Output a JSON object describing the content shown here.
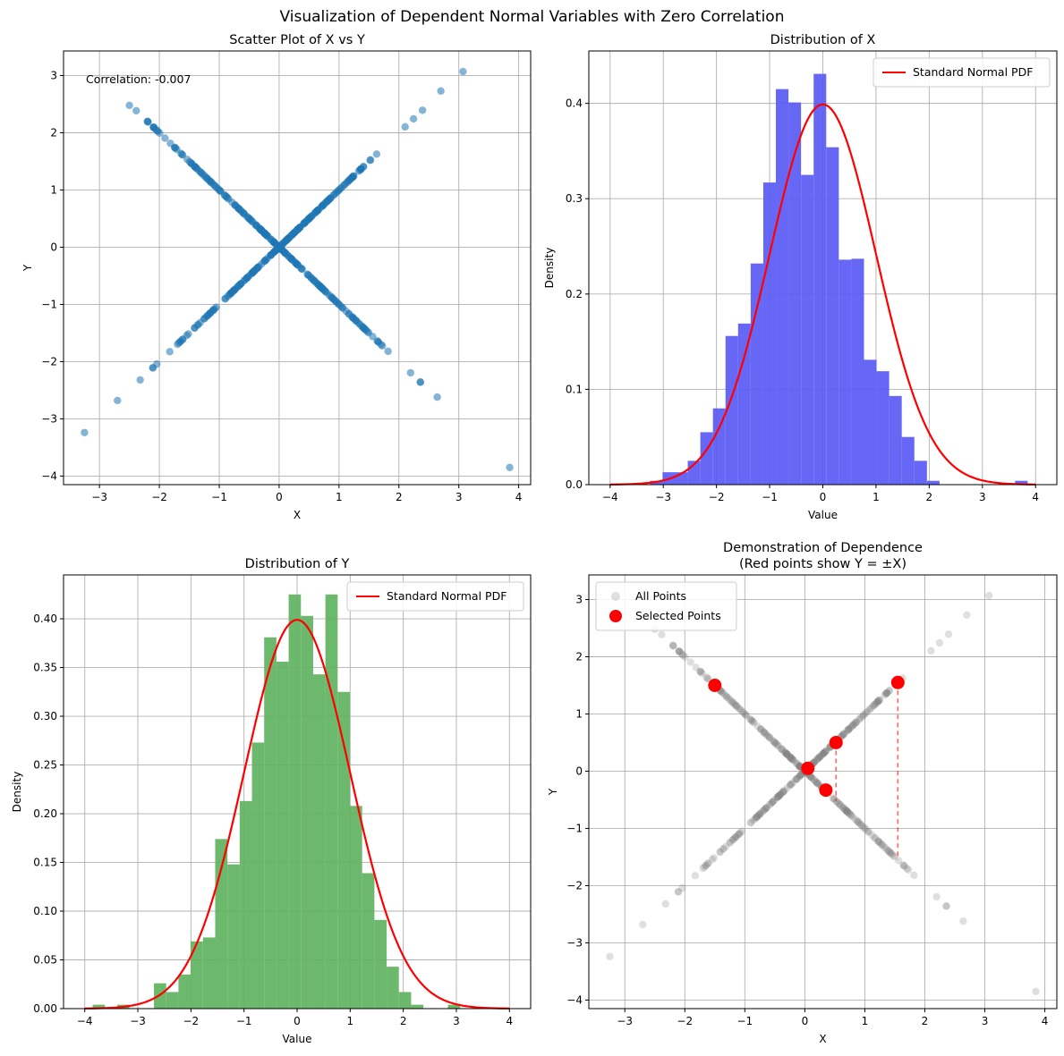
{
  "figure": {
    "title": "Visualization of Dependent Normal Variables with Zero Correlation"
  },
  "chart_data": [
    {
      "id": "scatter",
      "type": "scatter",
      "title": "Scatter Plot of X vs Y",
      "xlabel": "X",
      "ylabel": "Y",
      "xlim": [
        -3.6,
        4.2
      ],
      "ylim": [
        -4.15,
        3.43
      ],
      "xticks": [
        -3,
        -2,
        -1,
        0,
        1,
        2,
        3,
        4
      ],
      "yticks": [
        -4,
        -3,
        -2,
        -1,
        0,
        1,
        2,
        3
      ],
      "grid": true,
      "annotation": "Correlation: -0.007",
      "color": "#1f77b4",
      "relation": "Y = X for some points and Y = -X for others (two crossing lines)",
      "outliers": [
        {
          "x": -3.25,
          "y": -3.24
        },
        {
          "x": 3.85,
          "y": -3.85
        },
        {
          "x": 3.07,
          "y": 3.07
        },
        {
          "x": -2.5,
          "y": 2.48
        },
        {
          "x": 2.7,
          "y": 2.73
        },
        {
          "x": -2.7,
          "y": -2.68
        },
        {
          "x": 2.64,
          "y": -2.62
        }
      ]
    },
    {
      "id": "hist_x",
      "type": "bar",
      "title": "Distribution of X",
      "xlabel": "Value",
      "ylabel": "Density",
      "xlim": [
        -4.4,
        4.4
      ],
      "ylim": [
        0,
        0.455
      ],
      "xticks": [
        -4,
        -3,
        -2,
        -1,
        0,
        1,
        2,
        3,
        4
      ],
      "yticks": [
        0.0,
        0.1,
        0.2,
        0.3,
        0.4
      ],
      "ytick_format": 1,
      "grid": true,
      "bar_color": "#5a5af5",
      "bins": {
        "start": -3.25,
        "width": 0.2367,
        "density": [
          0.004,
          0.013,
          0.013,
          0.025,
          0.055,
          0.08,
          0.156,
          0.169,
          0.232,
          0.317,
          0.415,
          0.401,
          0.325,
          0.431,
          0.354,
          0.236,
          0.237,
          0.131,
          0.119,
          0.093,
          0.05,
          0.025,
          0.004,
          0.0,
          0.0,
          0.0,
          0.0,
          0.0,
          0.0,
          0.004
        ]
      },
      "legend": {
        "position": "upper right",
        "entries": [
          "Standard Normal PDF"
        ]
      },
      "pdf_range": [
        -4,
        4
      ],
      "pdf_color": "#ff0000"
    },
    {
      "id": "hist_y",
      "type": "bar",
      "title": "Distribution of Y",
      "xlabel": "Value",
      "ylabel": "Density",
      "xlim": [
        -4.4,
        4.4
      ],
      "ylim": [
        0,
        0.445
      ],
      "xticks": [
        -4,
        -3,
        -2,
        -1,
        0,
        1,
        2,
        3,
        4
      ],
      "yticks": [
        0.0,
        0.05,
        0.1,
        0.15,
        0.2,
        0.25,
        0.3,
        0.35,
        0.4
      ],
      "ytick_format": 2,
      "grid": true,
      "bar_color": "#5fb25f",
      "bins": {
        "start": -3.85,
        "width": 0.2307,
        "density": [
          0.004,
          0.0,
          0.004,
          0.0,
          0.0,
          0.026,
          0.017,
          0.035,
          0.069,
          0.073,
          0.174,
          0.148,
          0.213,
          0.273,
          0.381,
          0.356,
          0.425,
          0.403,
          0.343,
          0.425,
          0.325,
          0.208,
          0.139,
          0.091,
          0.043,
          0.017,
          0.004,
          0.0,
          0.0,
          0.004
        ]
      },
      "legend": {
        "position": "upper right",
        "entries": [
          "Standard Normal PDF"
        ]
      },
      "pdf_range": [
        -4,
        4
      ],
      "pdf_color": "#ff0000"
    },
    {
      "id": "dependence",
      "type": "scatter",
      "title": "Demonstration of Dependence\n(Red points show Y = ±X)",
      "xlabel": "X",
      "ylabel": "Y",
      "xlim": [
        -3.6,
        4.2
      ],
      "ylim": [
        -4.15,
        3.43
      ],
      "xticks": [
        -3,
        -2,
        -1,
        0,
        1,
        2,
        3,
        4
      ],
      "yticks": [
        -4,
        -3,
        -2,
        -1,
        0,
        1,
        2,
        3
      ],
      "grid": true,
      "legend": {
        "position": "upper left",
        "entries": [
          "All Points",
          "Selected Points"
        ]
      },
      "all_points_color": "#808080",
      "selected_color": "#ff0000",
      "selected_points": [
        {
          "x": -1.5,
          "y": 1.5
        },
        {
          "x": 0.05,
          "y": 0.05
        },
        {
          "x": 0.52,
          "y": 0.5
        },
        {
          "x": 0.35,
          "y": -0.33
        },
        {
          "x": 1.55,
          "y": 1.55
        }
      ],
      "dashed_connectors": [
        {
          "x": 0.52,
          "y1": 0.5,
          "y2": -0.52
        },
        {
          "x": 1.55,
          "y1": 1.55,
          "y2": -1.55
        }
      ]
    }
  ]
}
